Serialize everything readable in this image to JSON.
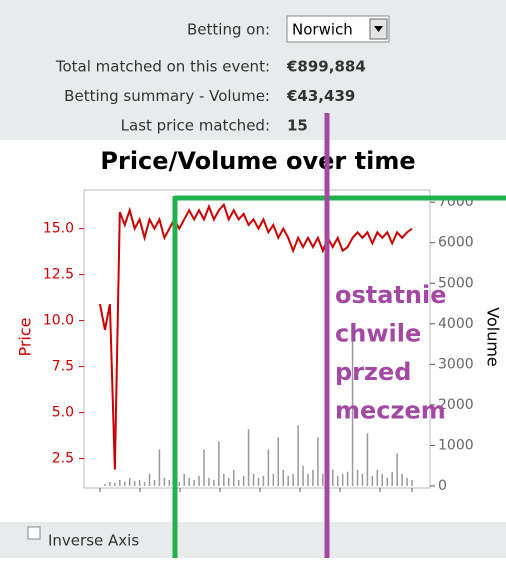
{
  "form": {
    "betting_on_label": "Betting on:",
    "betting_on_value": "Norwich",
    "rows": [
      {
        "label": "Total matched on this event:",
        "value": "€899,884"
      },
      {
        "label": "Betting summary - Volume:",
        "value": "€43,439"
      },
      {
        "label": "Last price matched:",
        "value": "15"
      }
    ],
    "inverse_axis": "Inverse Axis"
  },
  "chart_data": {
    "type": "line",
    "title": "Price/Volume over time",
    "ylim": [
      0.9,
      17.1
    ],
    "yticks": [
      2.5,
      {
        "value": 5,
        "label": "5.0"
      },
      7.5,
      {
        "value": 10,
        "label": "10.0"
      },
      12.5,
      {
        "value": 15,
        "label": "15.0"
      }
    ],
    "y2lim": [
      -50,
      7300
    ],
    "y2ticks": [
      0,
      1000,
      2000,
      3000,
      4000,
      5000,
      6000,
      7000
    ],
    "series": [
      {
        "name": "Price",
        "color": "#cc0000",
        "values": [
          10.9,
          9.5,
          10.9,
          1.9,
          15.9,
          15.2,
          16.0,
          15.0,
          15.5,
          14.5,
          15.5,
          15.0,
          15.5,
          14.5,
          15.0,
          15.5,
          15.0,
          15.5,
          16.0,
          15.5,
          16.0,
          15.5,
          16.2,
          15.5,
          16.0,
          16.3,
          15.5,
          16.0,
          15.5,
          15.8,
          15.2,
          15.5,
          15.0,
          15.5,
          14.8,
          15.2,
          14.5,
          15.0,
          14.5,
          13.8,
          14.5,
          14.0,
          14.5,
          14.0,
          14.5,
          13.8,
          14.5,
          14.0,
          14.5,
          13.8,
          14.0,
          14.5,
          14.8,
          14.5,
          14.8,
          14.2,
          14.8,
          14.5,
          14.8,
          14.2,
          14.8,
          14.5,
          14.8,
          15.0
        ]
      },
      {
        "name": "Volume",
        "color": "#999999",
        "axis": "y2",
        "type": "bar",
        "values": [
          0,
          50,
          100,
          80,
          150,
          100,
          200,
          120,
          150,
          100,
          300,
          150,
          900,
          200,
          150,
          250,
          100,
          300,
          200,
          150,
          250,
          900,
          200,
          150,
          1100,
          300,
          200,
          400,
          150,
          250,
          1400,
          300,
          200,
          250,
          900,
          300,
          1200,
          400,
          250,
          300,
          1500,
          500,
          300,
          400,
          1200,
          300,
          900,
          400,
          250,
          300,
          350,
          3600,
          400,
          300,
          1300,
          250,
          400,
          300,
          200,
          350,
          800,
          300,
          200,
          150
        ]
      }
    ]
  },
  "annotation": {
    "lines": [
      "ostatnie",
      "chwile",
      "przed",
      "meczem"
    ]
  }
}
